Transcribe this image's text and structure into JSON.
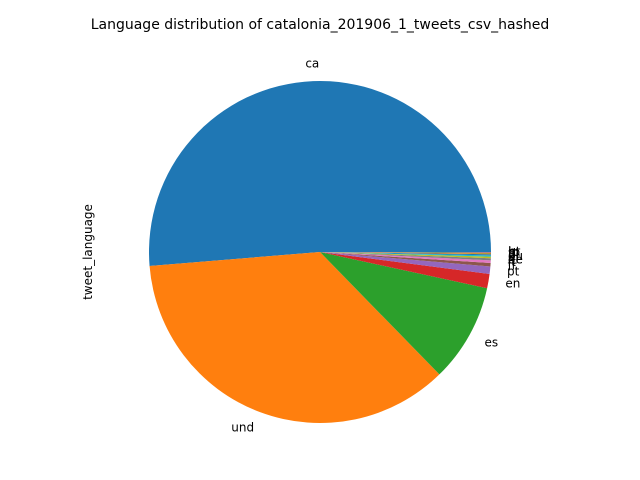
{
  "chart_data": {
    "type": "pie",
    "title": "Language distribution of catalonia_201906_1_tweets_csv_hashed",
    "ylabel": "tweet_language",
    "slices": [
      {
        "label": "ca",
        "value": 51.3,
        "color": "#1f77b4"
      },
      {
        "label": "und",
        "value": 36.0,
        "color": "#ff7f0e"
      },
      {
        "label": "es",
        "value": 9.3,
        "color": "#2ca02c"
      },
      {
        "label": "en",
        "value": 1.35,
        "color": "#d62728"
      },
      {
        "label": "pt",
        "value": 0.7,
        "color": "#9467bd"
      },
      {
        "label": "fr",
        "value": 0.32,
        "color": "#8c564b"
      },
      {
        "label": "it",
        "value": 0.25,
        "color": "#e377c2"
      },
      {
        "label": "de",
        "value": 0.2,
        "color": "#7f7f7f"
      },
      {
        "label": "nl",
        "value": 0.15,
        "color": "#bcbd22"
      },
      {
        "label": "eu",
        "value": 0.12,
        "color": "#17becf"
      },
      {
        "label": "gl",
        "value": 0.1,
        "color": "#1f77b4"
      },
      {
        "label": "tl",
        "value": 0.08,
        "color": "#ff7f0e"
      },
      {
        "label": "in",
        "value": 0.06,
        "color": "#2ca02c"
      },
      {
        "label": "ro",
        "value": 0.04,
        "color": "#d62728"
      },
      {
        "label": "ht",
        "value": 0.03,
        "color": "#9467bd"
      }
    ],
    "start_angle_deg": 0,
    "direction": "counterclockwise",
    "legend": "none"
  }
}
